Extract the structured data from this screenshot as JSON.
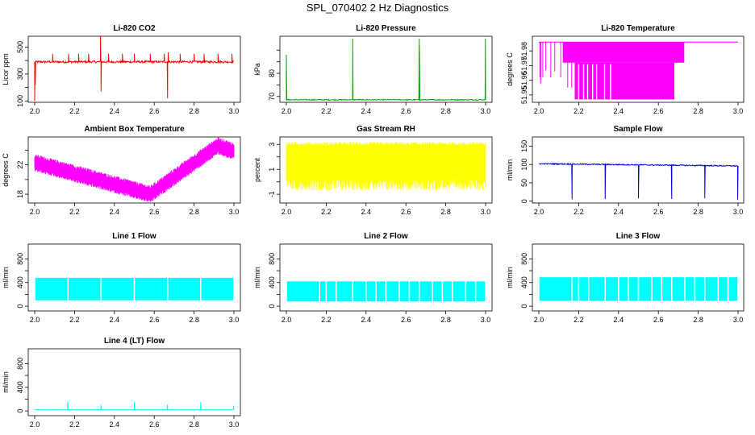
{
  "page_title": "SPL_070402  2 Hz Diagnostics",
  "chart_data": [
    {
      "type": "line",
      "title": "Li-820 CO2",
      "ylabel": "Licor ppm",
      "color": "#ff0000",
      "xlim": [
        1.99,
        3.01
      ],
      "ylim": [
        90,
        580
      ],
      "xticks": [
        "2.0",
        "2.2",
        "2.4",
        "2.6",
        "2.8",
        "3.0"
      ],
      "yticks": [
        "100",
        "300",
        "500"
      ],
      "ytick_values": [
        100,
        300,
        500
      ],
      "yticks_minor": [
        200,
        400
      ],
      "base": 390,
      "noise": 8,
      "spikes": [
        {
          "x": 2.0,
          "y": 100
        },
        {
          "x": 2.003,
          "y": 220
        },
        {
          "x": 2.09,
          "y": 450
        },
        {
          "x": 2.17,
          "y": 450
        },
        {
          "x": 2.22,
          "y": 450
        },
        {
          "x": 2.27,
          "y": 450
        },
        {
          "x": 2.33,
          "y": 580
        },
        {
          "x": 2.333,
          "y": 170
        },
        {
          "x": 2.37,
          "y": 450
        },
        {
          "x": 2.44,
          "y": 450
        },
        {
          "x": 2.5,
          "y": 450
        },
        {
          "x": 2.58,
          "y": 450
        },
        {
          "x": 2.65,
          "y": 450
        },
        {
          "x": 2.667,
          "y": 120
        },
        {
          "x": 2.67,
          "y": 460
        },
        {
          "x": 2.73,
          "y": 450
        },
        {
          "x": 2.8,
          "y": 450
        },
        {
          "x": 2.85,
          "y": 450
        },
        {
          "x": 2.92,
          "y": 450
        },
        {
          "x": 2.99,
          "y": 450
        }
      ]
    },
    {
      "type": "line",
      "title": "Li-820 Pressure",
      "ylabel": "kPa",
      "color": "#00aa00",
      "xlim": [
        1.99,
        3.01
      ],
      "ylim": [
        67.5,
        96
      ],
      "xticks": [
        "2.0",
        "2.2",
        "2.4",
        "2.6",
        "2.8",
        "3.0"
      ],
      "yticks": [
        "70",
        "80"
      ],
      "ytick_values": [
        70,
        80
      ],
      "yticks_minor": [
        75,
        85,
        90
      ],
      "base": 68.6,
      "noise": 0.2,
      "spikes": [
        {
          "x": 2.0,
          "y": 88
        },
        {
          "x": 2.333,
          "y": 95
        },
        {
          "x": 2.667,
          "y": 95
        },
        {
          "x": 2.668,
          "y": 92
        },
        {
          "x": 2.999,
          "y": 95
        }
      ]
    },
    {
      "type": "line",
      "title": "Li-820 Temperature",
      "ylabel": "degrees C",
      "color": "#ff00ff",
      "xlim": [
        1.99,
        3.01
      ],
      "ylim": [
        51.945,
        51.99
      ],
      "xticks": [
        "2.0",
        "2.2",
        "2.4",
        "2.6",
        "2.8",
        "3.0"
      ],
      "yticks": [
        "51.95",
        "51.96",
        "51.97",
        "51.98"
      ],
      "ytick_values": [
        51.95,
        51.96,
        51.97,
        51.98
      ],
      "yticks_minor": [],
      "mode": "digital"
    },
    {
      "type": "line",
      "title": "Ambient Box Temperature",
      "ylabel": "degrees C",
      "color": "#ff00ff",
      "xlim": [
        1.99,
        3.01
      ],
      "ylim": [
        16.8,
        25.8
      ],
      "xticks": [
        "2.0",
        "2.2",
        "2.4",
        "2.6",
        "2.8",
        "3.0"
      ],
      "yticks": [
        "18",
        "22"
      ],
      "ytick_values": [
        18,
        22
      ],
      "yticks_minor": [
        20,
        24
      ],
      "mode": "ambient"
    },
    {
      "type": "line",
      "title": "Gas Stream RH",
      "ylabel": "percent",
      "color": "#ffff00",
      "xlim": [
        1.99,
        3.01
      ],
      "ylim": [
        -1.7,
        3.6
      ],
      "xticks": [
        "2.0",
        "2.2",
        "2.4",
        "2.6",
        "2.8",
        "3.0"
      ],
      "yticks": [
        "-1",
        "1",
        "3"
      ],
      "ytick_values": [
        -1,
        1,
        3
      ],
      "yticks_minor": [
        0,
        2
      ],
      "mode": "band",
      "band_low": -0.7,
      "band_high": 3.2,
      "band_core_low": 0.2,
      "band_core_high": 2.9
    },
    {
      "type": "line",
      "title": "Sample Flow",
      "ylabel": "ml/min",
      "color": "#0000dd",
      "xlim": [
        1.99,
        3.01
      ],
      "ylim": [
        -5,
        175
      ],
      "xticks": [
        "2.0",
        "2.2",
        "2.4",
        "2.6",
        "2.8",
        "3.0"
      ],
      "yticks": [
        "0",
        "50",
        "100",
        "150"
      ],
      "ytick_values": [
        0,
        50,
        100,
        150
      ],
      "yticks_minor": [],
      "base": 102,
      "base_end": 96,
      "noise": 1.5,
      "spikes": [
        {
          "x": 2.167,
          "y": 5
        },
        {
          "x": 2.333,
          "y": 6
        },
        {
          "x": 2.5,
          "y": 8
        },
        {
          "x": 2.667,
          "y": 6
        },
        {
          "x": 2.833,
          "y": 8
        },
        {
          "x": 2.998,
          "y": 4
        }
      ]
    },
    {
      "type": "line",
      "title": "Line 1 Flow",
      "ylabel": "ml/min",
      "color": "#00ffff",
      "xlim": [
        1.99,
        3.01
      ],
      "ylim": [
        -80,
        1050
      ],
      "xticks": [
        "2.0",
        "2.2",
        "2.4",
        "2.6",
        "2.8",
        "3.0"
      ],
      "yticks": [
        "0",
        "400",
        "800"
      ],
      "ytick_values": [
        0,
        400,
        800
      ],
      "yticks_minor": [
        200,
        600
      ],
      "mode": "blocks",
      "block_low": 100,
      "block_high": 480,
      "gaps": [
        2.167,
        2.333,
        2.5,
        2.667,
        2.833
      ]
    },
    {
      "type": "line",
      "title": "Line 2 Flow",
      "ylabel": "ml/min",
      "color": "#00ffff",
      "xlim": [
        1.99,
        3.01
      ],
      "ylim": [
        -80,
        1050
      ],
      "xticks": [
        "2.0",
        "2.2",
        "2.4",
        "2.6",
        "2.8",
        "3.0"
      ],
      "yticks": [
        "0",
        "400",
        "800"
      ],
      "ytick_values": [
        0,
        400,
        800
      ],
      "yticks_minor": [
        200,
        600
      ],
      "mode": "blocks",
      "block_low": 80,
      "block_high": 420,
      "gaps": [
        2.167,
        2.2,
        2.25,
        2.333,
        2.4,
        2.45,
        2.5,
        2.567,
        2.617,
        2.667,
        2.733,
        2.783,
        2.833,
        2.9,
        2.95
      ]
    },
    {
      "type": "line",
      "title": "Line 3 Flow",
      "ylabel": "ml/min",
      "color": "#00ffff",
      "xlim": [
        1.99,
        3.01
      ],
      "ylim": [
        -80,
        1050
      ],
      "xticks": [
        "2.0",
        "2.2",
        "2.4",
        "2.6",
        "2.8",
        "3.0"
      ],
      "yticks": [
        "0",
        "400",
        "800"
      ],
      "ytick_values": [
        0,
        400,
        800
      ],
      "yticks_minor": [
        200,
        600
      ],
      "mode": "blocks",
      "block_low": 90,
      "block_high": 490,
      "gaps": [
        2.167,
        2.2,
        2.25,
        2.333,
        2.4,
        2.45,
        2.5,
        2.567,
        2.617,
        2.667,
        2.733,
        2.783,
        2.833,
        2.9,
        2.95
      ]
    },
    {
      "type": "line",
      "title": "Line 4 (LT) Flow",
      "ylabel": "ml/min",
      "color": "#00ffff",
      "xlim": [
        1.99,
        3.01
      ],
      "ylim": [
        -80,
        1050
      ],
      "xticks": [
        "2.0",
        "2.2",
        "2.4",
        "2.6",
        "2.8",
        "3.0"
      ],
      "yticks": [
        "0",
        "400",
        "800"
      ],
      "ytick_values": [
        0,
        400,
        800
      ],
      "yticks_minor": [
        200,
        600
      ],
      "base": 20,
      "noise": 3,
      "spikes": [
        {
          "x": 2.167,
          "y": 160
        },
        {
          "x": 2.333,
          "y": 100
        },
        {
          "x": 2.5,
          "y": 150
        },
        {
          "x": 2.667,
          "y": 110
        },
        {
          "x": 2.833,
          "y": 150
        },
        {
          "x": 2.998,
          "y": 90
        }
      ]
    }
  ]
}
